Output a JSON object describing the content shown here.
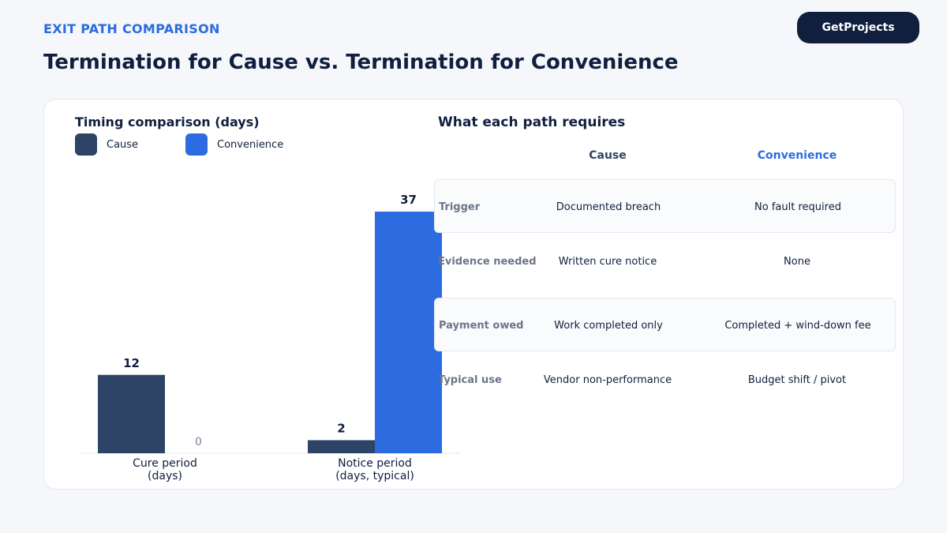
{
  "header": {
    "eyebrow": "EXIT PATH COMPARISON",
    "title": "Termination for Cause vs. Termination for Convenience",
    "brand": "GetProjects"
  },
  "colors": {
    "cause": "#2e4466",
    "convenience": "#2d6ce0",
    "accent": "#2b6cdf",
    "navy": "#0f1f3d"
  },
  "chart_data": {
    "type": "bar",
    "title": "Timing comparison (days)",
    "categories": [
      [
        "Cure period",
        "(days)"
      ],
      [
        "Notice period",
        "(days, typical)"
      ]
    ],
    "series": [
      {
        "name": "Cause",
        "values": [
          12,
          2
        ]
      },
      {
        "name": "Convenience",
        "values": [
          0,
          37
        ]
      }
    ],
    "ylim": [
      0,
      37
    ],
    "legend_position": "top-left",
    "grid": false
  },
  "table": {
    "heading": "What each path requires",
    "columns": [
      "Cause",
      "Convenience"
    ],
    "rows": [
      {
        "label": "Trigger",
        "cause": "Documented breach",
        "convenience": "No fault required"
      },
      {
        "label": "Evidence needed",
        "cause": "Written cure notice",
        "convenience": "None"
      },
      {
        "label": "Payment owed",
        "cause": "Work completed only",
        "convenience": "Completed + wind-down fee"
      },
      {
        "label": "Typical use",
        "cause": "Vendor non-performance",
        "convenience": "Budget shift / pivot"
      }
    ]
  }
}
